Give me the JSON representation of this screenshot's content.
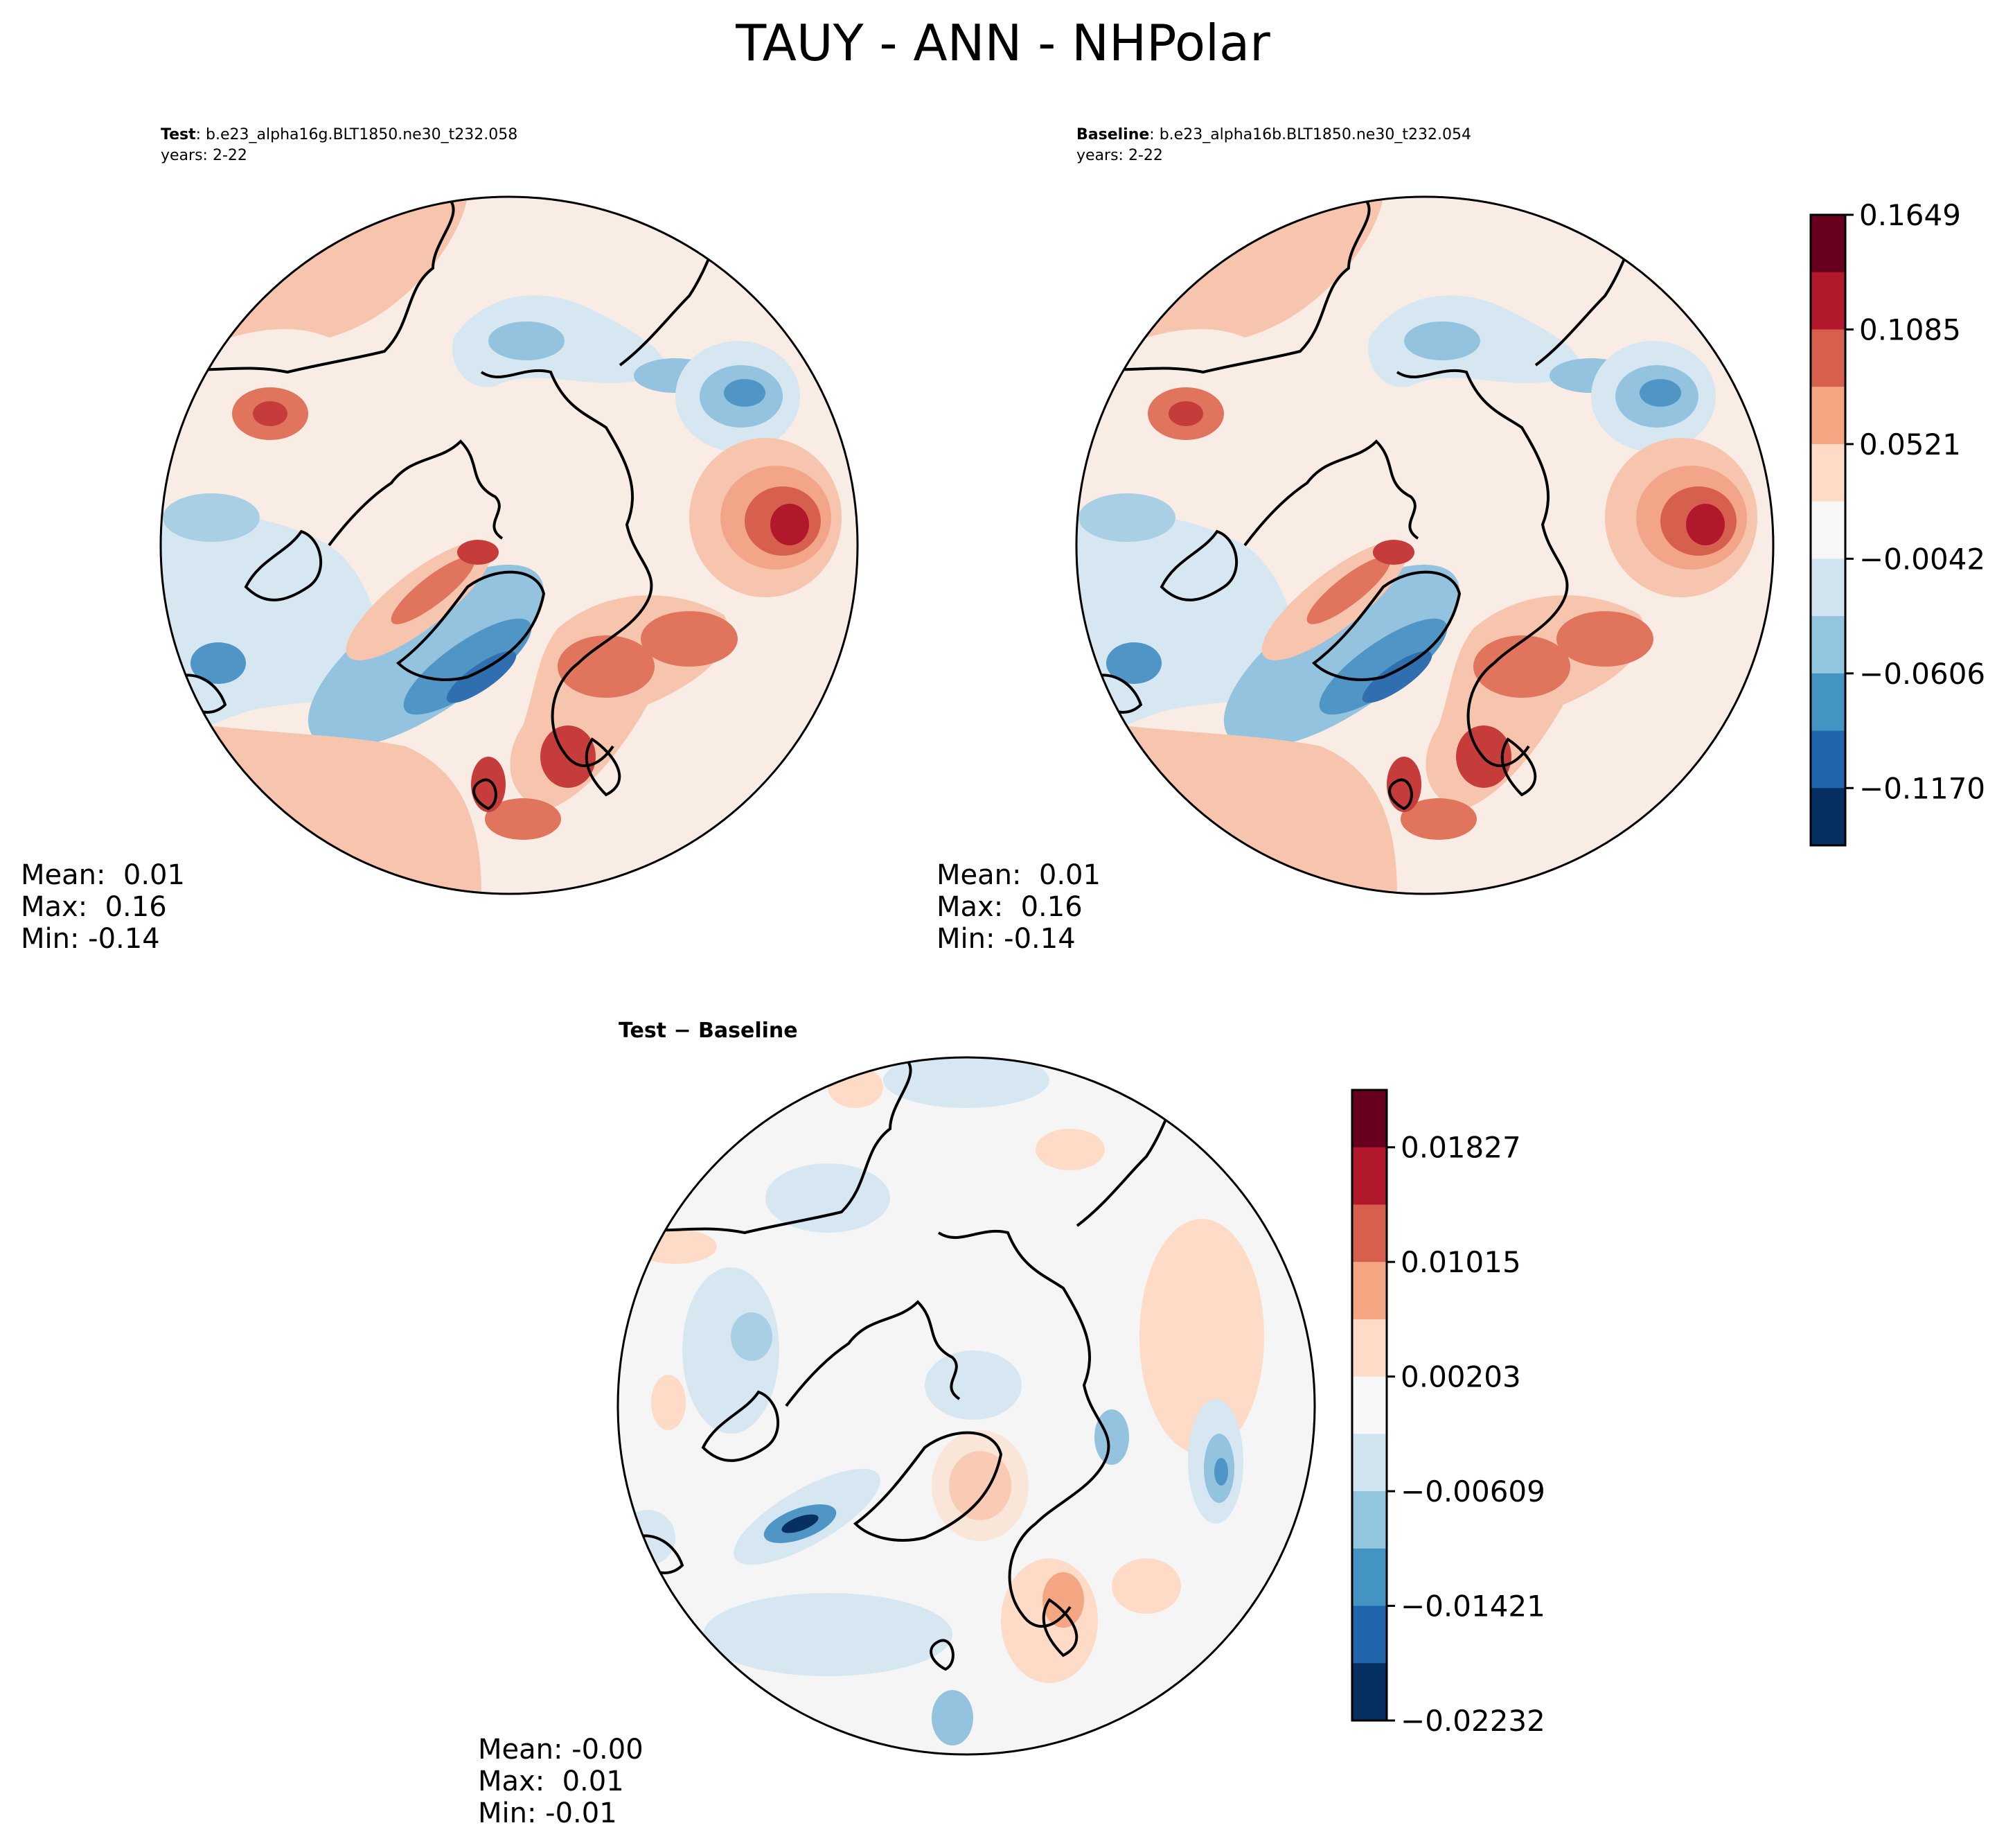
{
  "title": "TAUY - ANN - NHPolar",
  "panels": {
    "test": {
      "label_bold": "Test",
      "label_rest": ": b.e23_alpha16g.BLT1850.ne30_t232.058",
      "years": "years: 2-22",
      "stats": {
        "mean": "Mean:  0.01",
        "max": "Max:  0.16",
        "min": "Min: -0.14"
      }
    },
    "baseline": {
      "label_bold": "Baseline",
      "label_rest": ": b.e23_alpha16b.BLT1850.ne30_t232.054",
      "years": "years: 2-22",
      "stats": {
        "mean": "Mean:  0.01",
        "max": "Max:  0.16",
        "min": "Min: -0.14"
      }
    },
    "diff": {
      "title": "Test − Baseline",
      "stats": {
        "mean": "Mean: -0.00",
        "max": "Max:  0.01",
        "min": "Min: -0.01"
      }
    }
  },
  "colorbars": {
    "main": {
      "ticks": [
        "0.1649",
        "0.1085",
        "0.0521",
        "−0.0042",
        "−0.0606",
        "−0.1170"
      ],
      "colors": [
        "#67001f",
        "#b2182b",
        "#d6604d",
        "#f4a582",
        "#fddbc7",
        "#f7f7f7",
        "#d1e5f0",
        "#92c5de",
        "#4393c3",
        "#2166ac",
        "#053061"
      ]
    },
    "diff": {
      "ticks": [
        "0.01827",
        "0.01015",
        "0.00203",
        "−0.00609",
        "−0.01421",
        "−0.02232"
      ],
      "colors": [
        "#67001f",
        "#b2182b",
        "#d6604d",
        "#f4a582",
        "#fddbc7",
        "#f7f7f7",
        "#d1e5f0",
        "#92c5de",
        "#4393c3",
        "#2166ac",
        "#053061"
      ]
    }
  }
}
